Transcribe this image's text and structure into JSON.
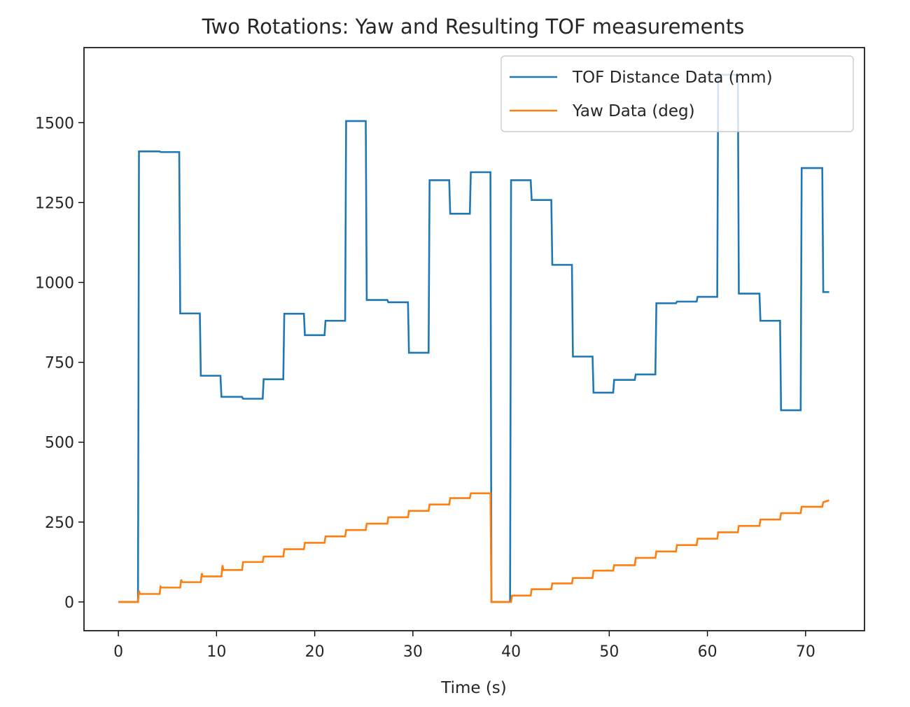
{
  "chart_data": {
    "type": "line",
    "title": "Two Rotations: Yaw and Resulting TOF measurements",
    "xlabel": "Time (s)",
    "ylabel": "",
    "xlim": [
      -3.5,
      76
    ],
    "ylim": [
      -90,
      1735
    ],
    "x_ticks": [
      0,
      10,
      20,
      30,
      40,
      50,
      60,
      70
    ],
    "y_ticks": [
      0,
      250,
      500,
      750,
      1000,
      1250,
      1500
    ],
    "grid": false,
    "legend_position": "top-right",
    "series": [
      {
        "name": "TOF Distance Data (mm)",
        "color": "#1f77b4",
        "x": [
          0,
          2.0,
          2.1,
          4.2,
          4.3,
          6.2,
          6.3,
          8.3,
          8.4,
          10.4,
          10.5,
          12.6,
          12.7,
          14.7,
          14.8,
          16.8,
          16.9,
          18.9,
          19.0,
          21.0,
          21.1,
          23.1,
          23.2,
          25.2,
          25.3,
          27.4,
          27.5,
          29.5,
          29.6,
          31.6,
          31.7,
          33.7,
          33.8,
          35.8,
          35.9,
          37.9,
          38.0,
          39.9,
          40.0,
          42.0,
          42.1,
          44.1,
          44.2,
          46.2,
          46.3,
          48.3,
          48.4,
          50.4,
          50.5,
          52.6,
          52.7,
          54.7,
          54.8,
          56.8,
          56.9,
          58.9,
          59.0,
          61.0,
          61.1,
          63.1,
          63.2,
          65.3,
          65.4,
          67.4,
          67.5,
          69.5,
          69.6,
          71.7,
          71.8,
          72.4
        ],
        "y": [
          0,
          0,
          1410,
          1410,
          1408,
          1408,
          903,
          903,
          708,
          708,
          642,
          642,
          636,
          636,
          697,
          697,
          902,
          902,
          835,
          835,
          880,
          880,
          1505,
          1505,
          945,
          945,
          938,
          938,
          780,
          780,
          1320,
          1320,
          1215,
          1215,
          1345,
          1345,
          0,
          0,
          1320,
          1320,
          1258,
          1258,
          1055,
          1055,
          768,
          768,
          655,
          655,
          695,
          695,
          712,
          712,
          935,
          935,
          940,
          940,
          955,
          955,
          1650,
          1650,
          965,
          965,
          880,
          880,
          600,
          600,
          1358,
          1358,
          970,
          970
        ]
      },
      {
        "name": "Yaw Data (deg)",
        "color": "#ff7f0e",
        "x": [
          0,
          2.0,
          2.1,
          2.2,
          4.2,
          4.3,
          4.4,
          6.3,
          6.4,
          6.5,
          8.4,
          8.5,
          8.6,
          10.5,
          10.6,
          10.7,
          12.6,
          12.7,
          14.7,
          14.8,
          16.8,
          16.9,
          18.9,
          19.0,
          21.0,
          21.1,
          23.1,
          23.2,
          25.2,
          25.3,
          27.4,
          27.5,
          29.5,
          29.6,
          31.6,
          31.7,
          33.7,
          33.8,
          35.8,
          35.9,
          37.8,
          37.9,
          38.0,
          40.0,
          40.1,
          42.0,
          42.1,
          44.1,
          44.2,
          46.2,
          46.3,
          48.3,
          48.4,
          50.4,
          50.5,
          52.6,
          52.7,
          54.7,
          54.8,
          56.8,
          56.9,
          58.9,
          59.0,
          61.0,
          61.1,
          63.1,
          63.2,
          65.3,
          65.4,
          67.4,
          67.5,
          69.5,
          69.6,
          71.7,
          71.8,
          72.4
        ],
        "y": [
          0,
          0,
          35,
          25,
          25,
          48,
          45,
          45,
          70,
          62,
          62,
          90,
          80,
          80,
          115,
          100,
          100,
          125,
          125,
          142,
          142,
          165,
          165,
          185,
          185,
          205,
          205,
          225,
          225,
          245,
          245,
          265,
          265,
          285,
          285,
          305,
          305,
          325,
          325,
          340,
          340,
          340,
          0,
          0,
          20,
          20,
          40,
          40,
          58,
          58,
          75,
          75,
          98,
          98,
          115,
          115,
          138,
          138,
          158,
          158,
          178,
          178,
          198,
          198,
          218,
          218,
          238,
          238,
          258,
          258,
          278,
          278,
          298,
          298,
          312,
          318
        ]
      }
    ]
  }
}
